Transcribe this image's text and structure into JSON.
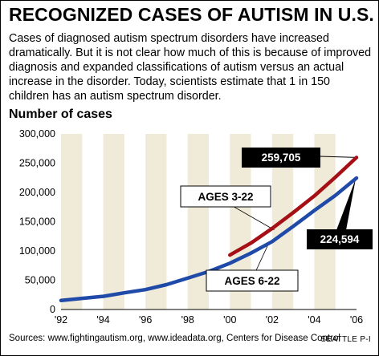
{
  "header": {
    "title": "RECOGNIZED CASES OF AUTISM IN U.S.",
    "intro": "Cases of diagnosed autism spectrum disorders have increased dramatically. But it is not clear how much of this is because of improved diagnosis and expanded classifications of autism versus an actual increase in the disorder. Today, scientists estimate that 1 in 150 children has an autism spectrum disorder."
  },
  "footer": {
    "sources": "Sources: www.fightingautism.org, www.ideadata.org, Centers for Disease Control",
    "credit": "SEATTLE P-I"
  },
  "colors": {
    "ages_3_22": "#a50f15",
    "ages_6_22": "#1f4aa8",
    "band": "#f0ead8"
  },
  "chart_data": {
    "type": "line",
    "ylabel": "Number of cases",
    "ylim": [
      0,
      300000
    ],
    "yticks": [
      "300,000",
      "250,000",
      "200,000",
      "150,000",
      "100,000",
      "50,000",
      "0"
    ],
    "xlim": [
      1992,
      2006
    ],
    "xticks": [
      "'92",
      "'94",
      "'96",
      "'98",
      "'00",
      "'02",
      "'04",
      "'06"
    ],
    "grid": "alternating vertical bands",
    "series": [
      {
        "name": "AGES 6-22",
        "x": [
          1992,
          1993,
          1994,
          1995,
          1996,
          1997,
          1998,
          1999,
          2000,
          2001,
          2002,
          2003,
          2004,
          2005,
          2006
        ],
        "values": [
          15500,
          19000,
          22500,
          28500,
          34000,
          42500,
          53500,
          65000,
          79000,
          96500,
          116000,
          142000,
          169000,
          195000,
          224594
        ]
      },
      {
        "name": "AGES 3-22",
        "x": [
          2000,
          2001,
          2002,
          2003,
          2004,
          2005,
          2006
        ],
        "values": [
          93000,
          113500,
          138500,
          165500,
          194000,
          226000,
          259705
        ]
      }
    ],
    "annotations": [
      {
        "text": "259,705",
        "series": "AGES 3-22"
      },
      {
        "text": "224,594",
        "series": "AGES 6-22"
      }
    ]
  }
}
